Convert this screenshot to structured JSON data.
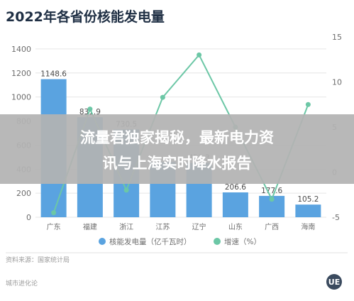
{
  "chart_data": {
    "type": "bar",
    "title": "2022年各省份核能发电量",
    "categories": [
      "广东",
      "福建",
      "浙江",
      "江苏",
      "辽宁",
      "山东",
      "广西",
      "海南"
    ],
    "series": [
      {
        "name": "核能发电量（亿千瓦时）",
        "type": "bar",
        "axis": "left",
        "color": "#5aa3e0",
        "values": [
          1148.6,
          831.9,
          730.5,
          460.0,
          451.3,
          206.6,
          177.6,
          105.2
        ],
        "labels": [
          "1148.6",
          "831.9",
          "730.5",
          "",
          "451.3",
          "206.6",
          "177.6",
          "105.2"
        ]
      },
      {
        "name": "增速（%）",
        "type": "line",
        "axis": "right",
        "color": "#6cc7a6",
        "values": [
          -4.5,
          7.0,
          -2.0,
          8.3,
          13.0,
          5.0,
          -3.0,
          7.5
        ]
      }
    ],
    "y_left": {
      "ylim": [
        0,
        1500
      ],
      "ticks": [
        0,
        200,
        400,
        600,
        800,
        1000,
        1200,
        1400
      ]
    },
    "y_right": {
      "ylim": [
        -5,
        15
      ],
      "ticks": [
        -5,
        0,
        5,
        10,
        15
      ]
    },
    "grid": true,
    "legend": "bottom"
  },
  "source_note": "资料来源：国家统计局",
  "brand": "城市进化论",
  "banner": {
    "line1": "流量君独家揭秘，最新电力资",
    "line2": "讯与上海实时降水报告",
    "background": "#b3b3b3"
  },
  "colors": {
    "bar": "#5aa3e0",
    "line": "#6cc7a6",
    "title": "#1f2f44",
    "grid": "#e6e6e6"
  }
}
